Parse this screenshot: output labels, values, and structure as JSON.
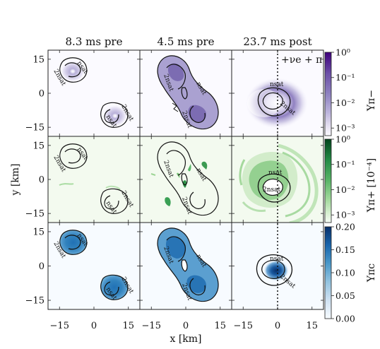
{
  "chart_data": {
    "type": "heatmap",
    "columns": [
      {
        "label": "8.3 ms pre",
        "time_ms": 8.3,
        "phase": "pre"
      },
      {
        "label": "4.5 ms pre",
        "time_ms": 4.5,
        "phase": "pre"
      },
      {
        "label": "23.7 ms post",
        "time_ms": 23.7,
        "phase": "post"
      }
    ],
    "rows": [
      {
        "quantity": "Y_π⁻",
        "colorbar_label": "Yπ−",
        "scale": "log",
        "range": [
          0.0005,
          1
        ],
        "colorbar_ticks": [
          "10⁰",
          "10⁻¹",
          "10⁻²",
          "10⁻³"
        ],
        "colormap": [
          "#fbfaff",
          "#e4dff0",
          "#bcb4dc",
          "#8e82c0",
          "#6b4ea6",
          "#3f007d"
        ]
      },
      {
        "quantity": "Y_π⁺ [10⁻⁴]",
        "colorbar_label": "Yπ+ [10⁻⁴]",
        "scale": "log",
        "range": [
          0.0005,
          1
        ],
        "colorbar_ticks": [
          "10⁰",
          "10⁻¹",
          "10⁻²",
          "10⁻³"
        ],
        "colormap": [
          "#f7fcf5",
          "#d5efcf",
          "#a1d99b",
          "#5ab567",
          "#238b45",
          "#00441b"
        ]
      },
      {
        "quantity": "Y_π_c",
        "colorbar_label": "Yπc",
        "scale": "linear",
        "range": [
          0,
          0.2
        ],
        "colorbar_ticks": [
          "0.20",
          "0.15",
          "0.10",
          "0.05",
          "0.00"
        ],
        "colormap": [
          "#f7fbff",
          "#cfe1f2",
          "#93c3df",
          "#4a98c9",
          "#1764ab",
          "#08306b"
        ]
      }
    ],
    "xlabel": "x [km]",
    "ylabel": "y [km]",
    "xlim": [
      -20,
      20
    ],
    "ylim": [
      -19,
      19
    ],
    "x_ticks": [
      -15,
      0,
      15
    ],
    "y_ticks": [
      -15,
      0,
      15
    ],
    "x_tick_labels": [
      "−15",
      "0",
      "15"
    ],
    "y_tick_labels": [
      "−15",
      "0",
      "15"
    ],
    "contour_labels": [
      "n_sat",
      "2n_sat"
    ],
    "contour_label_text": {
      "nsat": "nsat",
      "twonsat": "2nsat"
    },
    "annotation": "+νe + π",
    "divider_x_km": 0,
    "divider_in_column": 3
  }
}
